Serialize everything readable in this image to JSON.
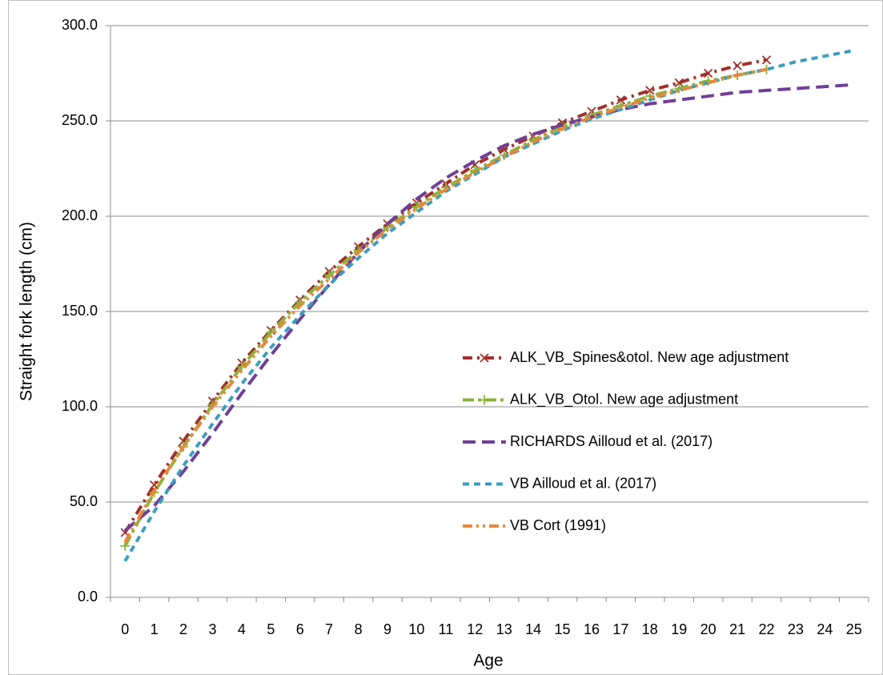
{
  "chart_data": {
    "type": "line",
    "x_label": "Age",
    "y_label": "Straight fork length (cm)",
    "categories": [
      "0",
      "1",
      "2",
      "3",
      "4",
      "5",
      "6",
      "7",
      "8",
      "9",
      "10",
      "11",
      "12",
      "13",
      "14",
      "15",
      "16",
      "17",
      "18",
      "19",
      "20",
      "21",
      "22",
      "23",
      "24",
      "25"
    ],
    "ylim": [
      0,
      300
    ],
    "yticks": [
      {
        "value": 0,
        "label": "0.0"
      },
      {
        "value": 50,
        "label": "50.0"
      },
      {
        "value": 100,
        "label": "100.0"
      },
      {
        "value": 150,
        "label": "150.0"
      },
      {
        "value": 200,
        "label": "200.0"
      },
      {
        "value": 250,
        "label": "250.0"
      },
      {
        "value": 300,
        "label": "300.0"
      }
    ],
    "grid": true,
    "series": [
      {
        "name": "ALK_VB_Spines&otol. New age adjustment",
        "color": "#a0302c",
        "dash": "12,6,3,6",
        "marker": "x",
        "values": [
          34,
          59,
          82,
          103,
          123,
          140,
          156,
          171,
          184,
          196,
          207,
          217,
          227,
          235,
          242,
          249,
          255,
          261,
          266,
          270,
          275,
          279,
          282,
          null,
          null,
          null
        ]
      },
      {
        "name": "ALK_VB_Otol. New age adjustment",
        "color": "#8db33b",
        "dash": "14,5,4,5",
        "marker": "plus",
        "values": [
          27,
          55,
          79,
          101,
          121,
          139,
          155,
          169,
          182,
          194,
          205,
          215,
          224,
          232,
          240,
          247,
          253,
          258,
          263,
          267,
          271,
          274,
          277,
          null,
          null,
          null
        ]
      },
      {
        "name": "RICHARDS Ailloud et al. (2017)",
        "color": "#6f3f97",
        "dash": "16,8",
        "marker": "none",
        "values": [
          35,
          48,
          66,
          86,
          107,
          127,
          146,
          164,
          181,
          196,
          209,
          220,
          229,
          237,
          243,
          248,
          252,
          256,
          259,
          261,
          263,
          265,
          266,
          267,
          268,
          269
        ]
      },
      {
        "name": "VB Ailloud et al. (2017)",
        "color": "#3b9ec0",
        "dash": "8,6",
        "marker": "none",
        "values": [
          19,
          45,
          69,
          91,
          112,
          131,
          148,
          164,
          178,
          191,
          202,
          213,
          222,
          231,
          238,
          245,
          251,
          256,
          261,
          266,
          270,
          274,
          277,
          281,
          284,
          287
        ]
      },
      {
        "name": "VB Cort (1991)",
        "color": "#e8883a",
        "dash": "12,5,3,5,3,5",
        "marker": "none",
        "values": [
          29,
          56,
          79,
          100,
          119,
          137,
          153,
          167,
          181,
          193,
          204,
          214,
          223,
          231,
          239,
          246,
          252,
          257,
          262,
          266,
          270,
          274,
          277,
          null,
          null,
          null
        ]
      }
    ]
  }
}
